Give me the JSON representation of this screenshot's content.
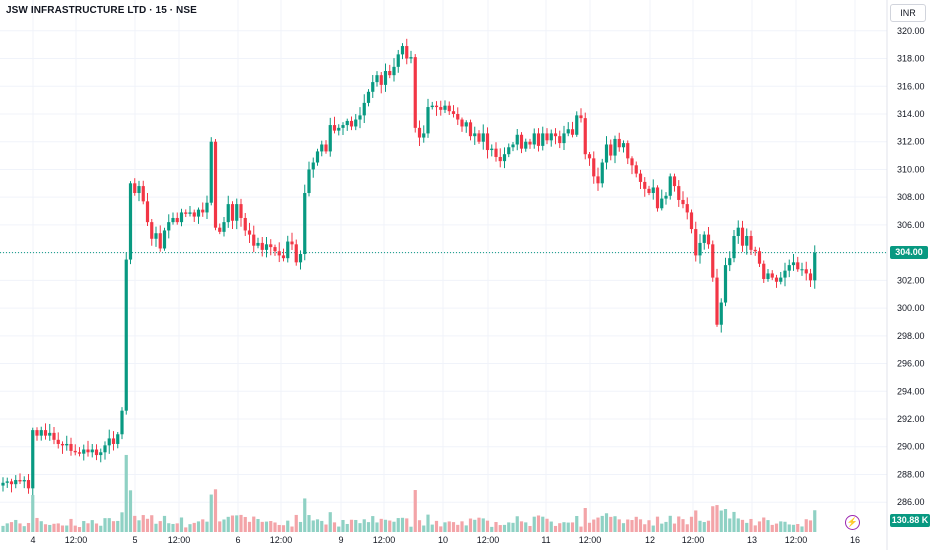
{
  "header": {
    "symbol_title": "JSW INFRASTRUCTURE LTD · 15 · NSE"
  },
  "axis": {
    "currency": "INR"
  },
  "badges": {
    "last_price": "304.00",
    "volume": "130.88 K"
  },
  "colors": {
    "up": "#089981",
    "down": "#f23645",
    "vol_up": "#8fd1c4",
    "vol_down": "#f3a4a8",
    "grid": "#f0f3fa",
    "text": "#131722"
  },
  "chart_data": {
    "type": "candlestick",
    "ylim": [
      284.5,
      321.5
    ],
    "yticks": [
      286,
      288,
      290,
      292,
      294,
      296,
      298,
      300,
      302,
      304,
      306,
      308,
      310,
      312,
      314,
      316,
      318,
      320
    ],
    "ytick_labels": [
      "286.00",
      "288.00",
      "290.00",
      "292.00",
      "294.00",
      "296.00",
      "298.00",
      "300.00",
      "302.00",
      "304.00",
      "306.00",
      "308.00",
      "310.00",
      "312.00",
      "314.00",
      "316.00",
      "318.00",
      "320.00"
    ],
    "xtick_labels": [
      "4",
      "12:00",
      "5",
      "12:00",
      "6",
      "12:00",
      "9",
      "12:00",
      "10",
      "12:00",
      "11",
      "12:00",
      "12",
      "12:00",
      "13",
      "12:00",
      "16"
    ],
    "last_price": 304.0,
    "closes": [
      287.4,
      287.5,
      287.3,
      287.6,
      287.5,
      287.6,
      287.0,
      291.2,
      290.8,
      291.2,
      290.8,
      291.0,
      290.5,
      290.2,
      290.1,
      290.2,
      289.7,
      289.6,
      289.5,
      289.8,
      289.6,
      289.8,
      289.4,
      289.6,
      290.1,
      290.6,
      290.2,
      290.9,
      292.6,
      303.5,
      309.0,
      308.3,
      308.8,
      307.7,
      306.2,
      305.0,
      305.4,
      304.3,
      305.6,
      306.2,
      306.5,
      306.2,
      306.9,
      306.8,
      306.9,
      306.6,
      307.1,
      306.9,
      307.6,
      312.0,
      305.8,
      305.5,
      306.2,
      307.5,
      306.3,
      307.5,
      306.5,
      305.6,
      305.3,
      304.5,
      304.7,
      304.2,
      304.6,
      304.4,
      304.1,
      303.8,
      303.6,
      304.8,
      304.6,
      303.3,
      303.9,
      308.3,
      310.0,
      310.5,
      311.3,
      311.8,
      311.3,
      313.2,
      312.8,
      313.0,
      313.2,
      313.5,
      313.1,
      313.6,
      313.9,
      314.8,
      315.6,
      316.3,
      316.8,
      316.1,
      317.1,
      316.8,
      317.4,
      318.3,
      318.9,
      318.0,
      318.1,
      313.0,
      312.3,
      312.6,
      314.5,
      314.6,
      314.5,
      314.3,
      314.6,
      314.2,
      314.0,
      313.6,
      313.1,
      313.4,
      312.4,
      312.6,
      312.0,
      312.6,
      311.4,
      311.5,
      310.9,
      310.6,
      311.1,
      311.6,
      311.8,
      312.5,
      311.5,
      312.0,
      311.8,
      312.6,
      311.7,
      312.6,
      312.1,
      312.6,
      312.4,
      311.9,
      312.6,
      312.9,
      312.5,
      313.9,
      313.7,
      311.1,
      310.8,
      309.5,
      309.0,
      310.5,
      311.8,
      311.0,
      312.2,
      311.6,
      311.9,
      310.8,
      310.3,
      309.7,
      309.1,
      308.6,
      308.3,
      308.7,
      307.2,
      307.9,
      308.1,
      309.5,
      308.8,
      307.8,
      307.5,
      306.9,
      305.7,
      303.8,
      304.7,
      305.3,
      304.6,
      302.2,
      298.8,
      300.4,
      303.1,
      303.6,
      305.2,
      305.8,
      304.5,
      305.2,
      304.2,
      304.1,
      303.2,
      302.1,
      302.5,
      302.2,
      301.9,
      302.2,
      302.7,
      303.1,
      303.3,
      302.8,
      302.8,
      302.5,
      302.0,
      304.0
    ]
  }
}
